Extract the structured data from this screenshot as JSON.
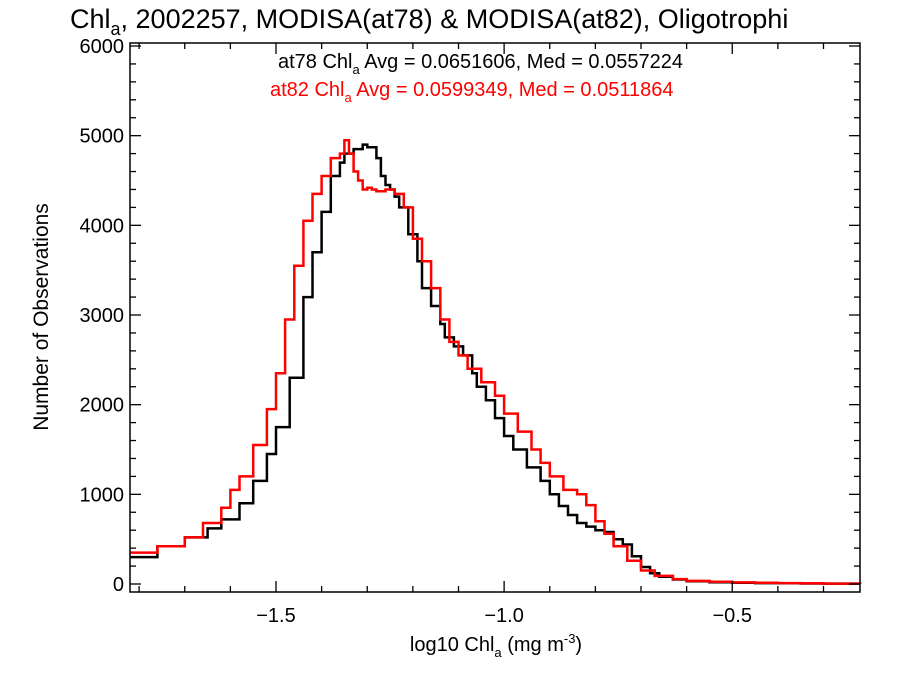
{
  "chart_data": {
    "type": "line",
    "title": {
      "pre": "Chl",
      "sub": "a",
      "post": ", 2002257, MODISA(at78) & MODISA(at82), Oligotrophi"
    },
    "xlabel": {
      "pre": "log10 Chl",
      "sub": "a",
      "mid": " (mg m",
      "sup": "-3",
      "post": ")"
    },
    "ylabel": "Number of Observations",
    "xlim": [
      -1.82,
      -0.22
    ],
    "ylim": [
      0,
      6000
    ],
    "xticks": [
      -1.5,
      -1.0,
      -0.5
    ],
    "xtick_labels": [
      "−1.5",
      "−1.0",
      "−0.5"
    ],
    "yticks": [
      0,
      1000,
      2000,
      3000,
      4000,
      5000,
      6000
    ],
    "ytick_labels": [
      "0",
      "1000",
      "2000",
      "3000",
      "4000",
      "5000",
      "6000"
    ],
    "legend": [
      {
        "pre": "at78 Chl",
        "sub": "a",
        "post": " Avg = 0.0651606, Med = 0.0557224",
        "color": "#000000"
      },
      {
        "pre": "at82 Chl",
        "sub": "a",
        "post": " Avg = 0.0599349, Med = 0.0511864",
        "color": "#ff0000"
      }
    ],
    "series": [
      {
        "name": "at78",
        "color": "#000000",
        "x": [
          -1.82,
          -1.76,
          -1.7,
          -1.65,
          -1.62,
          -1.58,
          -1.55,
          -1.52,
          -1.5,
          -1.47,
          -1.44,
          -1.42,
          -1.4,
          -1.38,
          -1.36,
          -1.35,
          -1.33,
          -1.31,
          -1.3,
          -1.28,
          -1.27,
          -1.26,
          -1.25,
          -1.24,
          -1.23,
          -1.21,
          -1.19,
          -1.18,
          -1.16,
          -1.14,
          -1.13,
          -1.11,
          -1.09,
          -1.07,
          -1.06,
          -1.04,
          -1.02,
          -1.0,
          -0.98,
          -0.95,
          -0.92,
          -0.9,
          -0.88,
          -0.86,
          -0.84,
          -0.82,
          -0.8,
          -0.78,
          -0.76,
          -0.74,
          -0.72,
          -0.7,
          -0.68,
          -0.66,
          -0.63,
          -0.6,
          -0.55,
          -0.5,
          -0.45,
          -0.4,
          -0.35,
          -0.3,
          -0.22
        ],
        "values": [
          300,
          420,
          520,
          620,
          720,
          900,
          1150,
          1450,
          1750,
          2300,
          3200,
          3700,
          4150,
          4550,
          4700,
          4800,
          4850,
          4900,
          4870,
          4750,
          4550,
          4450,
          4400,
          4320,
          4200,
          3900,
          3600,
          3300,
          3100,
          2900,
          2750,
          2650,
          2550,
          2350,
          2200,
          2050,
          1850,
          1650,
          1500,
          1300,
          1150,
          1000,
          870,
          770,
          680,
          640,
          600,
          580,
          500,
          440,
          310,
          190,
          120,
          80,
          50,
          30,
          20,
          15,
          10,
          8,
          6,
          5,
          2
        ]
      },
      {
        "name": "at82",
        "color": "#ff0000",
        "x": [
          -1.82,
          -1.76,
          -1.7,
          -1.66,
          -1.62,
          -1.6,
          -1.58,
          -1.55,
          -1.52,
          -1.5,
          -1.48,
          -1.46,
          -1.44,
          -1.42,
          -1.4,
          -1.38,
          -1.36,
          -1.35,
          -1.34,
          -1.33,
          -1.32,
          -1.31,
          -1.3,
          -1.29,
          -1.28,
          -1.26,
          -1.24,
          -1.22,
          -1.2,
          -1.18,
          -1.16,
          -1.14,
          -1.12,
          -1.1,
          -1.08,
          -1.05,
          -1.02,
          -1.0,
          -0.97,
          -0.94,
          -0.92,
          -0.9,
          -0.87,
          -0.84,
          -0.82,
          -0.8,
          -0.78,
          -0.76,
          -0.73,
          -0.7,
          -0.67,
          -0.63,
          -0.6,
          -0.55,
          -0.5,
          -0.45,
          -0.4,
          -0.35,
          -0.3,
          -0.22
        ],
        "values": [
          350,
          420,
          520,
          680,
          850,
          1050,
          1200,
          1550,
          1950,
          2350,
          2950,
          3550,
          4050,
          4350,
          4550,
          4750,
          4800,
          4950,
          4800,
          4600,
          4500,
          4400,
          4420,
          4400,
          4380,
          4400,
          4350,
          4200,
          3850,
          3600,
          3300,
          2950,
          2700,
          2550,
          2400,
          2250,
          2100,
          1900,
          1700,
          1500,
          1350,
          1200,
          1050,
          1000,
          880,
          700,
          560,
          420,
          260,
          150,
          90,
          55,
          35,
          25,
          18,
          14,
          10,
          8,
          5,
          2
        ]
      }
    ]
  }
}
